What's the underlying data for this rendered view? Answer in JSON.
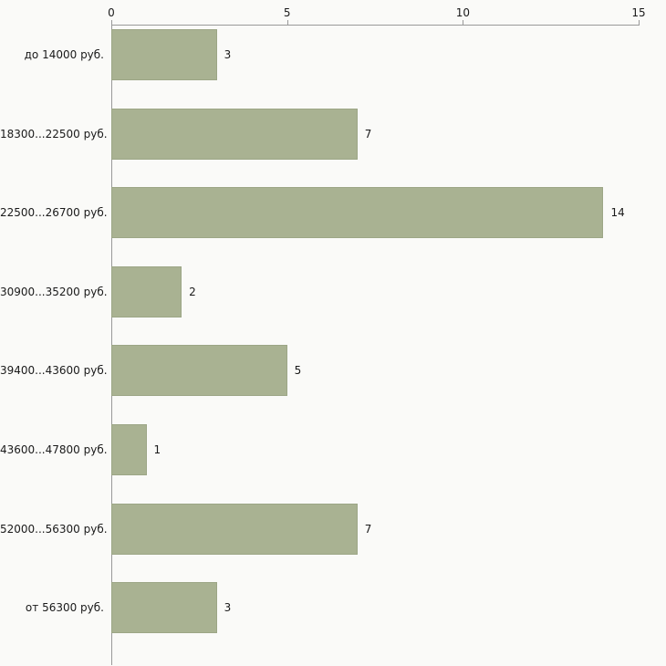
{
  "chart_data": {
    "type": "bar",
    "orientation": "horizontal",
    "title": "",
    "xlabel": "",
    "ylabel": "",
    "categories": [
      "до 14000 руб.",
      "18300...22500 руб.",
      "22500...26700 руб.",
      "30900...35200 руб.",
      "39400...43600 руб.",
      "43600...47800 руб.",
      "52000...56300 руб.",
      "от 56300 руб."
    ],
    "values": [
      3,
      7,
      14,
      2,
      5,
      1,
      7,
      3
    ],
    "value_labels": [
      "3",
      "7",
      "14",
      "2",
      "5",
      "1",
      "7",
      "3"
    ],
    "x_ticks": [
      0,
      5,
      10,
      15
    ],
    "xlim": [
      0,
      15
    ],
    "grid": false,
    "legend": false,
    "axis_position": "top-left"
  },
  "colors": {
    "background": "#fafaf8",
    "bar": "#a9b292",
    "bar_border": "#9ca686",
    "axis": "#999999",
    "text": "#1a1a1a"
  }
}
